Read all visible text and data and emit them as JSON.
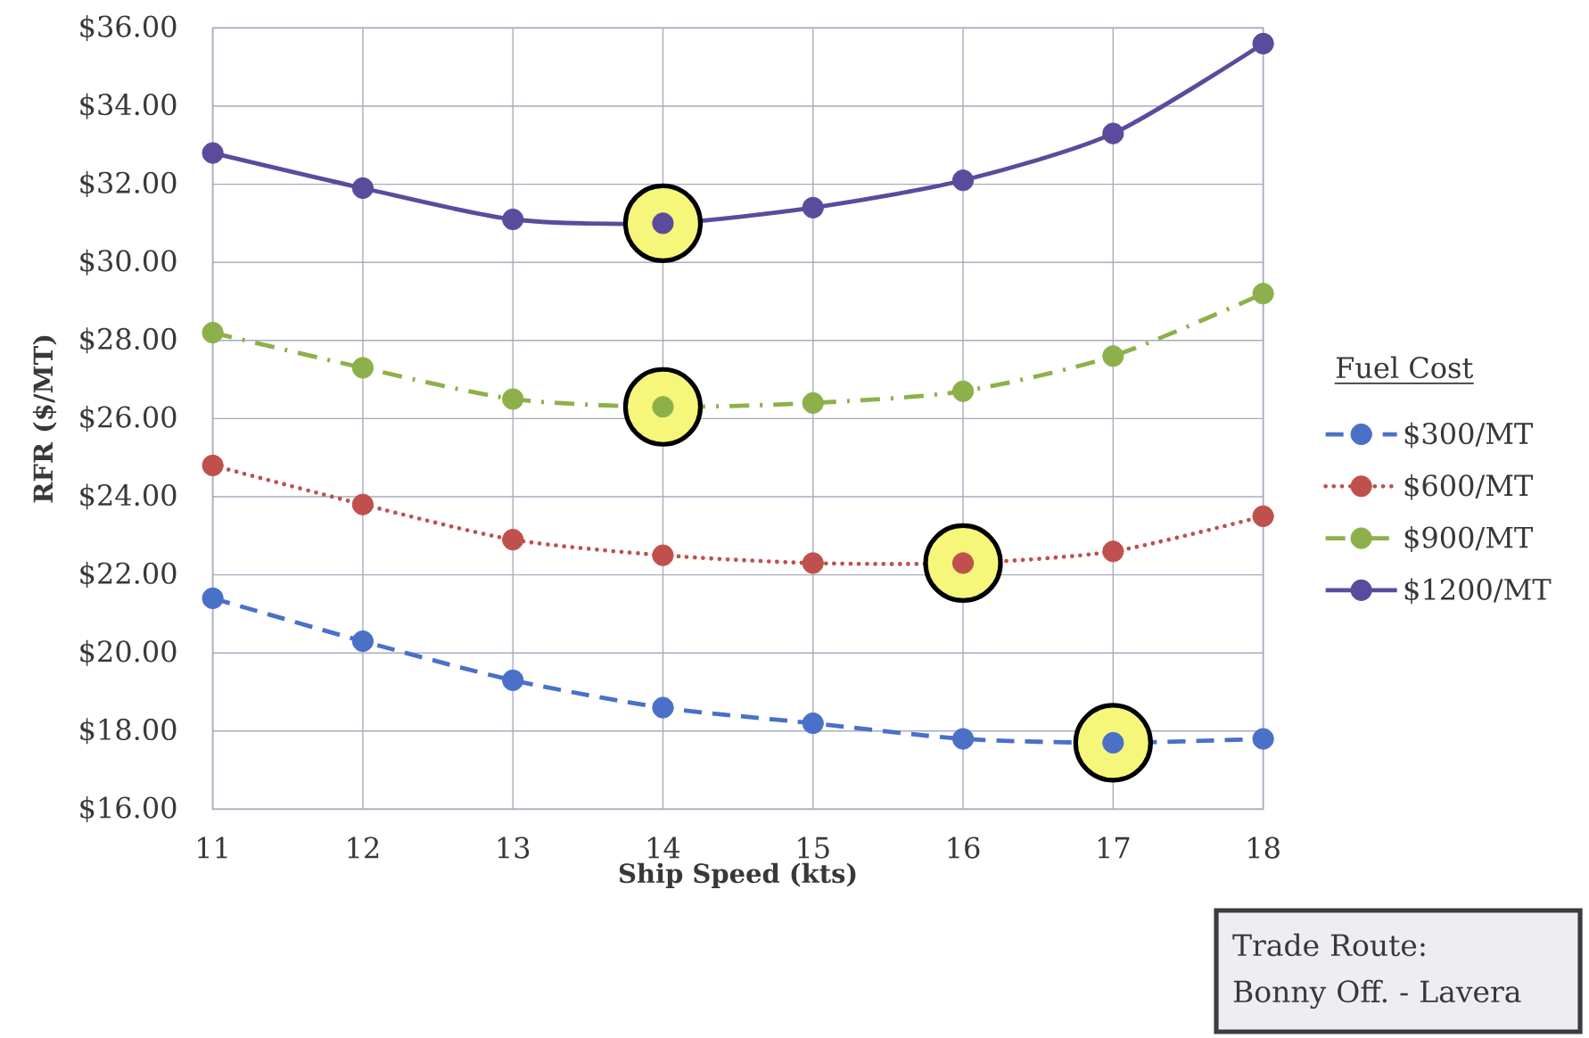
{
  "chart_data": {
    "type": "line",
    "xlabel": "Ship Speed (kts)",
    "ylabel": "RFR ($/MT)",
    "legend_title": "Fuel Cost",
    "annotations": [
      "Trade Route:",
      "Bonny Off. - Lavera"
    ],
    "x": [
      11,
      12,
      13,
      14,
      15,
      16,
      17,
      18
    ],
    "series": [
      {
        "type": "scatter",
        "color": "#f6f67a",
        "x": [
          14,
          14,
          16,
          17
        ],
        "values": [
          31.0,
          26.3,
          22.3,
          17.7
        ]
      },
      {
        "name": "$300/MT",
        "color": "#4a70c8",
        "line_style": "dashed",
        "values": [
          21.4,
          20.3,
          19.3,
          18.6,
          18.2,
          17.8,
          17.7,
          17.8
        ]
      },
      {
        "name": "$600/MT",
        "color": "#c0504d",
        "line_style": "dotted",
        "values": [
          24.8,
          23.8,
          22.9,
          22.5,
          22.3,
          22.3,
          22.6,
          23.5
        ]
      },
      {
        "name": "$900/MT",
        "color": "#8db04a",
        "line_style": "dashdot",
        "values": [
          28.2,
          27.3,
          26.5,
          26.3,
          26.4,
          26.7,
          27.6,
          29.2
        ]
      },
      {
        "name": "$1200/MT",
        "color": "#5b4b9c",
        "line_style": "solid",
        "values": [
          32.8,
          31.9,
          31.1,
          31.0,
          31.4,
          32.1,
          33.3,
          35.6
        ]
      }
    ],
    "xlim": [
      11,
      18
    ],
    "xticks": [
      11,
      12,
      13,
      14,
      15,
      16,
      17,
      18
    ],
    "ylim": [
      16,
      36
    ],
    "yticks": [
      {
        "value": 16,
        "label": "$16.00"
      },
      {
        "value": 18,
        "label": "$18.00"
      },
      {
        "value": 20,
        "label": "$20.00"
      },
      {
        "value": 22,
        "label": "$22.00"
      },
      {
        "value": 24,
        "label": "$24.00"
      },
      {
        "value": 26,
        "label": "$26.00"
      },
      {
        "value": 28,
        "label": "$28.00"
      },
      {
        "value": 30,
        "label": "$30.00"
      },
      {
        "value": 32,
        "label": "$32.00"
      },
      {
        "value": 34,
        "label": "$34.00"
      },
      {
        "value": 36,
        "label": "$36.00"
      }
    ],
    "grid": true,
    "legend": "right",
    "marker": "circle"
  }
}
